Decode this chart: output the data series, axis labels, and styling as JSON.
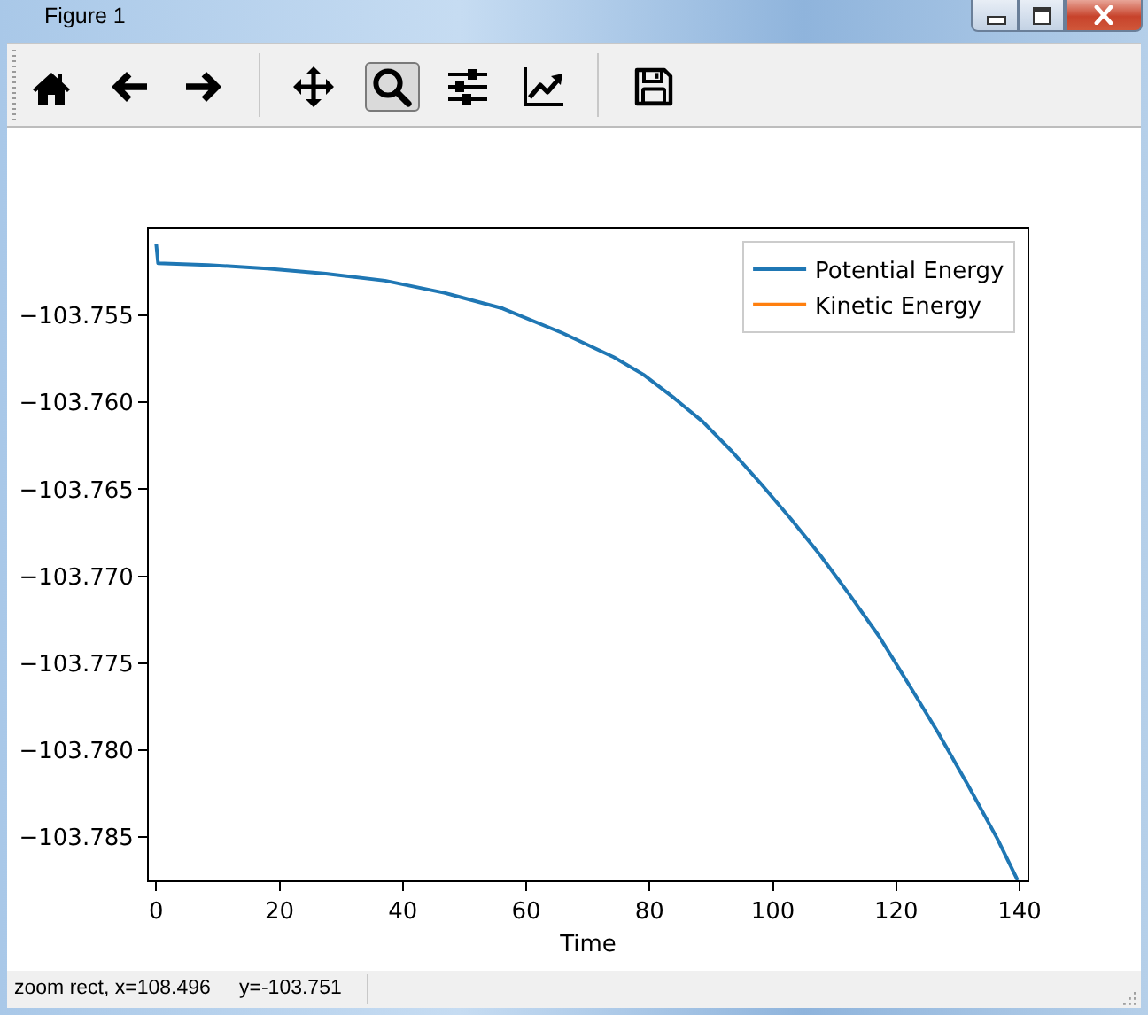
{
  "chart_data": {
    "type": "line",
    "xlabel": "Time",
    "annotations": [
      "Figure 1",
      "zoom rect, x=108.496",
      "y=-103.751"
    ],
    "x": [
      0,
      0.3,
      8.4,
      18,
      27.5,
      37.1,
      46.7,
      56.2,
      65.8,
      74.2,
      79,
      83.8,
      88.6,
      93.3,
      98.1,
      102.9,
      107.7,
      112.5,
      117.3,
      122,
      126.8,
      131.6,
      136.4,
      139.7
    ],
    "series": [
      {
        "name": "Potential Energy",
        "color": "#1f77b4",
        "values": [
          -103.7509,
          -103.752,
          -103.7521,
          -103.7523,
          -103.7526,
          -103.753,
          -103.7537,
          -103.7546,
          -103.756,
          -103.7574,
          -103.7584,
          -103.7597,
          -103.7611,
          -103.7628,
          -103.7647,
          -103.7667,
          -103.7688,
          -103.7711,
          -103.7735,
          -103.7762,
          -103.779,
          -103.782,
          -103.7851,
          -103.7875
        ]
      },
      {
        "name": "Kinetic Energy",
        "color": "#ff7f0e",
        "values": [
          null,
          null,
          null,
          null,
          null,
          null,
          null,
          null,
          null,
          null,
          null,
          null,
          null,
          null,
          null,
          null,
          null,
          null,
          null,
          null,
          null,
          null,
          null,
          null
        ]
      }
    ],
    "xlim": [
      -1.2,
      141.3
    ],
    "ylim": [
      -103.7875,
      -103.75
    ],
    "xticks": [
      0,
      20,
      40,
      60,
      80,
      100,
      120,
      140
    ],
    "yticks": [
      {
        "value": -103.755,
        "label": "−103.755"
      },
      {
        "value": -103.76,
        "label": "−103.760"
      },
      {
        "value": -103.765,
        "label": "−103.765"
      },
      {
        "value": -103.77,
        "label": "−103.770"
      },
      {
        "value": -103.775,
        "label": "−103.775"
      },
      {
        "value": -103.78,
        "label": "−103.780"
      },
      {
        "value": -103.785,
        "label": "−103.785"
      }
    ],
    "legend": "top right"
  }
}
